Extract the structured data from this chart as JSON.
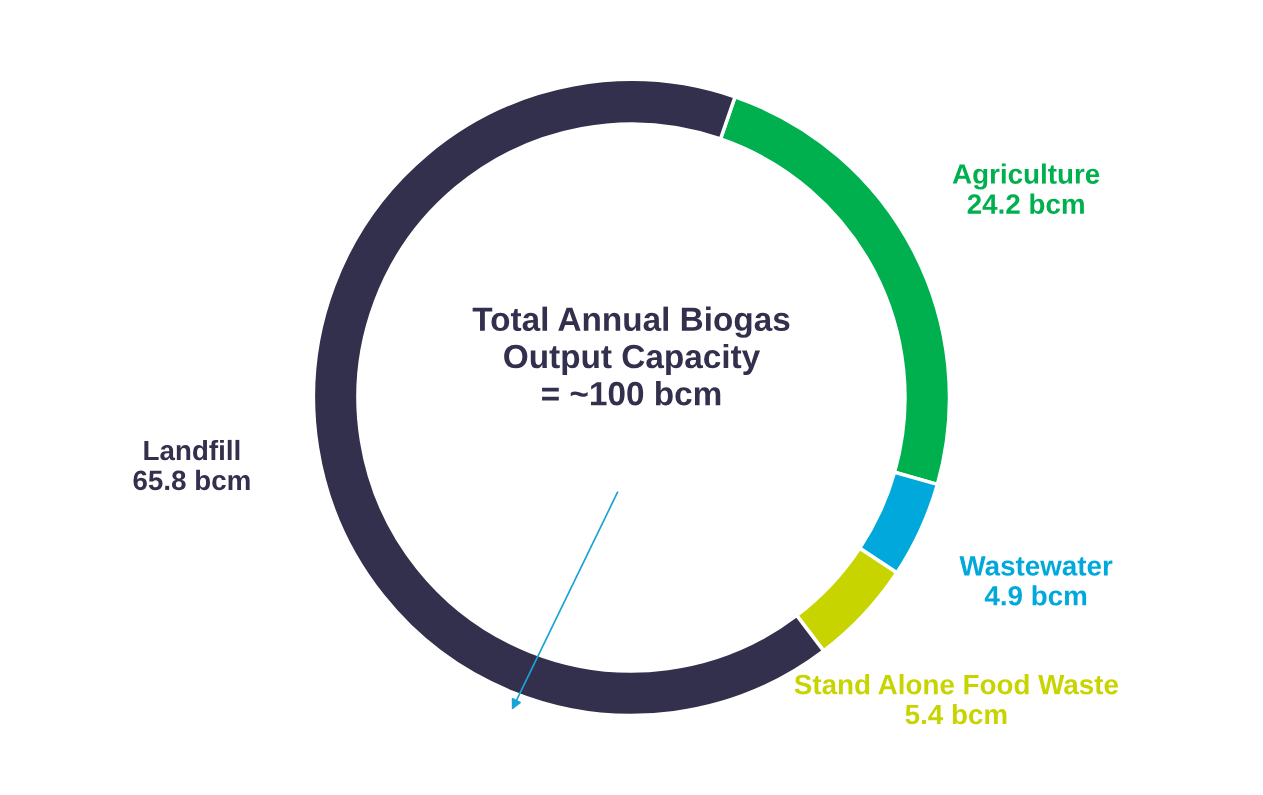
{
  "chart_data": {
    "type": "donut",
    "categories": [
      "Agriculture",
      "Wastewater",
      "Stand Alone Food Waste",
      "Landfill"
    ],
    "values": [
      24.2,
      4.9,
      5.4,
      65.8
    ],
    "value_labels": [
      "24.2 bcm",
      "4.9 bcm",
      "5.4 bcm",
      "65.8 bcm"
    ],
    "colors": [
      "#00b04f",
      "#00a8dc",
      "#c8d400",
      "#33304d"
    ],
    "annotations": [
      "Total Annual Biogas\nOutput Capacity\n= ~100 bcm"
    ],
    "legend": false
  }
}
